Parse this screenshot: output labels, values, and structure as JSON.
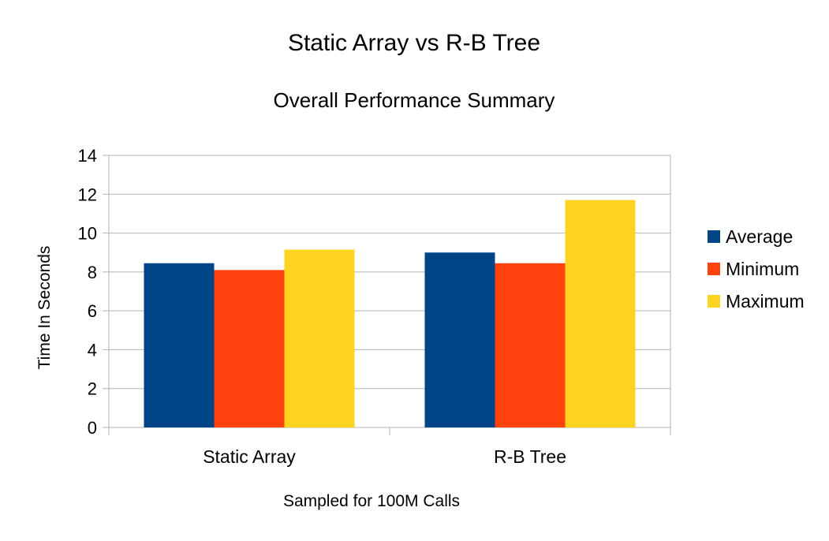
{
  "chart_data": {
    "type": "bar",
    "title": "Static Array vs R-B Tree",
    "subtitle": "Overall Performance Summary",
    "xlabel": "Sampled for 100M Calls",
    "ylabel": "Time In Seconds",
    "categories": [
      "Static Array",
      "R-B Tree"
    ],
    "series": [
      {
        "name": "Average",
        "values": [
          8.45,
          9.0
        ],
        "color": "#004586"
      },
      {
        "name": "Minimum",
        "values": [
          8.1,
          8.45
        ],
        "color": "#ff420e"
      },
      {
        "name": "Maximum",
        "values": [
          9.15,
          11.7
        ],
        "color": "#ffd320"
      }
    ],
    "ylim": [
      0,
      14
    ],
    "yticks": [
      0,
      2,
      4,
      6,
      8,
      10,
      12,
      14
    ],
    "grid": true,
    "legend": "right"
  }
}
